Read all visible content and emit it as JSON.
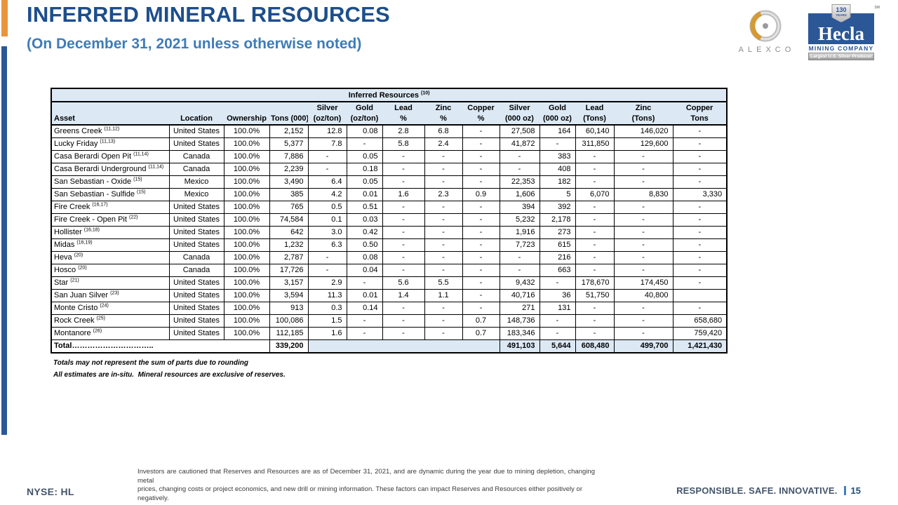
{
  "slide": {
    "title": "INFERRED MINERAL RESOURCES",
    "subtitle": "(On December 31, 2021 unless otherwise noted)",
    "ticker": "NYSE: HL",
    "tagline": "RESPONSIBLE. SAFE. INNOVATIVE.",
    "page_number": "15",
    "disclaimer_line1": "Investors are cautioned that Reserves and Resources are as of December 31, 2021, and are dynamic during the year due to mining depletion, changing metal",
    "disclaimer_line2": "prices, changing costs or project economics, and new drill or mining information. These factors can impact Reserves and Resources either positively or negatively."
  },
  "logos": {
    "alexco": {
      "label": "ALEXCO"
    },
    "hecla": {
      "name": "Hecla",
      "sub": "MINING COMPANY",
      "banner": "Largest U.S. Silver Producer",
      "badge_line1": "130",
      "badge_line2": "YEARS",
      "sm": "SM"
    }
  },
  "colors": {
    "accent_orange": "#E8953E",
    "accent_blue": "#2B5796",
    "title_blue": "#1D4E8C",
    "subtitle_blue": "#3E7CB9",
    "table_header_bg": "#DCE9F5",
    "footer_text": "#44546A",
    "page_separator_blue": "#4080BE"
  },
  "table": {
    "title": "Inferred Resources",
    "title_sup": "(10)",
    "columns": [
      {
        "key": "asset",
        "line1": "",
        "line2": "Asset"
      },
      {
        "key": "location",
        "line1": "",
        "line2": "Location"
      },
      {
        "key": "ownership",
        "line1": "",
        "line2": "Ownership"
      },
      {
        "key": "tons-000",
        "line1": "",
        "line2": "Tons (000)"
      },
      {
        "key": "silver-ozton",
        "line1": "Silver",
        "line2": "(oz/ton)"
      },
      {
        "key": "gold-ozton",
        "line1": "Gold",
        "line2": "(oz/ton)"
      },
      {
        "key": "lead-pct",
        "line1": "Lead",
        "line2": "%"
      },
      {
        "key": "zinc-pct",
        "line1": "Zinc",
        "line2": "%"
      },
      {
        "key": "copper-pct",
        "line1": "Copper",
        "line2": "%"
      },
      {
        "key": "silver-koz",
        "line1": "Silver",
        "line2": "(000 oz)"
      },
      {
        "key": "gold-koz",
        "line1": "Gold",
        "line2": "(000 oz)"
      },
      {
        "key": "lead-tons",
        "line1": "Lead",
        "line2": "(Tons)"
      },
      {
        "key": "zinc-tons",
        "line1": "Zinc",
        "line2": "(Tons)"
      },
      {
        "key": "copper-tons",
        "line1": "Copper",
        "line2": "Tons"
      }
    ],
    "rows": [
      {
        "asset": "Greens Creek",
        "sup": "(11,12)",
        "location": "United States",
        "ownership": "100.0%",
        "values": [
          "2,152",
          "12.8",
          "0.08",
          "2.8",
          "6.8",
          "-",
          "27,508",
          "164",
          "60,140",
          "146,020",
          "-"
        ]
      },
      {
        "asset": "Lucky Friday",
        "sup": "(11,13)",
        "location": "United States",
        "ownership": "100.0%",
        "values": [
          "5,377",
          "7.8",
          "-",
          "5.8",
          "2.4",
          "-",
          "41,872",
          "-",
          "311,850",
          "129,600",
          "-"
        ]
      },
      {
        "asset": "Casa Berardi Open Pit",
        "sup": "(11,14)",
        "location": "Canada",
        "ownership": "100.0%",
        "values": [
          "7,886",
          "-",
          "0.05",
          "-",
          "-",
          "-",
          "-",
          "383",
          "-",
          "-",
          "-"
        ]
      },
      {
        "asset": "Casa Berardi Underground",
        "sup": "(11,14)",
        "location": "Canada",
        "ownership": "100.0%",
        "values": [
          "2,239",
          "-",
          "0.18",
          "-",
          "-",
          "-",
          "-",
          "408",
          "-",
          "-",
          "-"
        ]
      },
      {
        "asset": "San Sebastian - Oxide",
        "sup": "(15)",
        "location": "Mexico",
        "ownership": "100.0%",
        "values": [
          "3,490",
          "6.4",
          "0.05",
          "-",
          "-",
          "-",
          "22,353",
          "182",
          "-",
          "-",
          "-"
        ]
      },
      {
        "asset": "San Sebastian - Sulfide",
        "sup": "(15)",
        "location": "Mexico",
        "ownership": "100.0%",
        "values": [
          "385",
          "4.2",
          "0.01",
          "1.6",
          "2.3",
          "0.9",
          "1,606",
          "5",
          "6,070",
          "8,830",
          "3,330"
        ]
      },
      {
        "asset": "Fire Creek",
        "sup": "(16,17)",
        "location": "United States",
        "ownership": "100.0%",
        "values": [
          "765",
          "0.5",
          "0.51",
          "-",
          "-",
          "-",
          "394",
          "392",
          "-",
          "-",
          "-"
        ]
      },
      {
        "asset": "Fire Creek - Open Pit",
        "sup": "(22)",
        "location": "United States",
        "ownership": "100.0%",
        "values": [
          "74,584",
          "0.1",
          "0.03",
          "-",
          "-",
          "-",
          "5,232",
          "2,178",
          "-",
          "-",
          "-"
        ]
      },
      {
        "asset": "Hollister",
        "sup": "(16,18)",
        "location": "United States",
        "ownership": "100.0%",
        "values": [
          "642",
          "3.0",
          "0.42",
          "-",
          "-",
          "-",
          "1,916",
          "273",
          "-",
          "-",
          "-"
        ]
      },
      {
        "asset": "Midas",
        "sup": "(16,19)",
        "location": "United States",
        "ownership": "100.0%",
        "values": [
          "1,232",
          "6.3",
          "0.50",
          "-",
          "-",
          "-",
          "7,723",
          "615",
          "-",
          "-",
          "-"
        ]
      },
      {
        "asset": "Heva",
        "sup": "(20)",
        "location": "Canada",
        "ownership": "100.0%",
        "values": [
          "2,787",
          "-",
          "0.08",
          "-",
          "-",
          "-",
          "-",
          "216",
          "-",
          "-",
          "-"
        ]
      },
      {
        "asset": "Hosco",
        "sup": "(20)",
        "location": "Canada",
        "ownership": "100.0%",
        "values": [
          "17,726",
          "-",
          "0.04",
          "-",
          "-",
          "-",
          "-",
          "663",
          "-",
          "-",
          "-"
        ]
      },
      {
        "asset": "Star",
        "sup": "(21)",
        "location": "United States",
        "ownership": "100.0%",
        "values": [
          "3,157",
          "2.9",
          "-",
          "5.6",
          "5.5",
          "-",
          "9,432",
          "-",
          "178,670",
          "174,450",
          "-"
        ]
      },
      {
        "asset": "San Juan Silver",
        "sup": "(23)",
        "location": "United States",
        "ownership": "100.0%",
        "values": [
          "3,594",
          "11.3",
          "0.01",
          "1.4",
          "1.1",
          "-",
          "40,716",
          "36",
          "51,750",
          "40,800",
          ""
        ]
      },
      {
        "asset": "Monte Cristo",
        "sup": "(24)",
        "location": "United States",
        "ownership": "100.0%",
        "values": [
          "913",
          "0.3",
          "0.14",
          "-",
          "-",
          "-",
          "271",
          "131",
          "-",
          "-",
          "-"
        ]
      },
      {
        "asset": "Rock Creek",
        "sup": "(25)",
        "location": "United States",
        "ownership": "100.0%",
        "values": [
          "100,086",
          "1.5",
          "-",
          "-",
          "-",
          "0.7",
          "148,736",
          "-",
          "-",
          "-",
          "658,680"
        ]
      },
      {
        "asset": "Montanore",
        "sup": "(26)",
        "location": "United States",
        "ownership": "100.0%",
        "values": [
          "112,185",
          "1.6",
          "-",
          "-",
          "-",
          "0.7",
          "183,346",
          "-",
          "-",
          "-",
          "759,420"
        ]
      }
    ],
    "total": {
      "label": "Total…………………………..",
      "tons": "339,200",
      "silver_koz": "491,103",
      "gold_koz": "5,644",
      "lead_tons": "608,480",
      "zinc_tons": "499,700",
      "copper_tons": "1,421,430"
    },
    "footnotes": [
      "Totals may not represent the sum of parts due to rounding",
      "All estimates are in-situ.  Mineral resources are exclusive of reserves."
    ]
  }
}
